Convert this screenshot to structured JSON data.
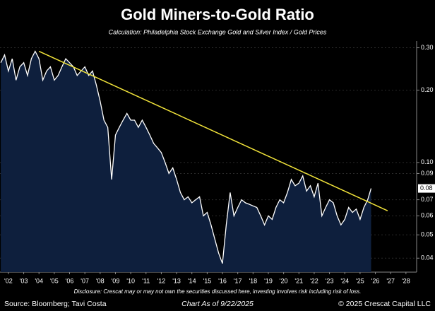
{
  "chart_data": {
    "type": "area",
    "title": "Gold Miners-to-Gold Ratio",
    "subtitle": "Calculation: Philadelphia Stock Exchange Gold and Silver Index / Gold Prices",
    "log_scale": true,
    "grid": true,
    "xlim": [
      2001.45,
      2028.7
    ],
    "ylim": [
      0.035,
      0.32
    ],
    "xticks": [
      {
        "value": 2002,
        "label": "'02"
      },
      {
        "value": 2003,
        "label": "'03"
      },
      {
        "value": 2004,
        "label": "'04"
      },
      {
        "value": 2005,
        "label": "'05"
      },
      {
        "value": 2006,
        "label": "'06"
      },
      {
        "value": 2007,
        "label": "'07"
      },
      {
        "value": 2008,
        "label": "'08"
      },
      {
        "value": 2009,
        "label": "'09"
      },
      {
        "value": 2010,
        "label": "'10"
      },
      {
        "value": 2011,
        "label": "'11"
      },
      {
        "value": 2012,
        "label": "'12"
      },
      {
        "value": 2013,
        "label": "'13"
      },
      {
        "value": 2014,
        "label": "'14"
      },
      {
        "value": 2015,
        "label": "'15"
      },
      {
        "value": 2016,
        "label": "'16"
      },
      {
        "value": 2017,
        "label": "'17"
      },
      {
        "value": 2018,
        "label": "'18"
      },
      {
        "value": 2019,
        "label": "'19"
      },
      {
        "value": 2020,
        "label": "'20"
      },
      {
        "value": 2021,
        "label": "'21"
      },
      {
        "value": 2022,
        "label": "'22"
      },
      {
        "value": 2023,
        "label": "'23"
      },
      {
        "value": 2024,
        "label": "'24"
      },
      {
        "value": 2025,
        "label": "'25"
      },
      {
        "value": 2026,
        "label": "'26"
      },
      {
        "value": 2027,
        "label": "'27"
      },
      {
        "value": 2028,
        "label": "'28"
      }
    ],
    "yticks": [
      {
        "value": 0.3,
        "label": "0.30"
      },
      {
        "value": 0.2,
        "label": "0.20"
      },
      {
        "value": 0.1,
        "label": "0.10"
      },
      0.09,
      0.07,
      0.06,
      0.05,
      0.04
    ],
    "current_value": {
      "value": 0.078,
      "label": "0.08"
    },
    "series": [
      {
        "name": "Gold Miners-to-Gold Ratio",
        "color": "#ffffff",
        "fill": "#0e1f3d",
        "x": [
          2001.5,
          2001.75,
          2002.0,
          2002.25,
          2002.5,
          2002.75,
          2003.0,
          2003.25,
          2003.5,
          2003.75,
          2004.0,
          2004.25,
          2004.5,
          2004.75,
          2005.0,
          2005.25,
          2005.5,
          2005.75,
          2006.0,
          2006.25,
          2006.5,
          2006.75,
          2007.0,
          2007.25,
          2007.5,
          2007.75,
          2008.0,
          2008.25,
          2008.5,
          2008.75,
          2009.0,
          2009.25,
          2009.5,
          2009.75,
          2010.0,
          2010.25,
          2010.5,
          2010.75,
          2011.0,
          2011.25,
          2011.5,
          2011.75,
          2012.0,
          2012.25,
          2012.5,
          2012.75,
          2013.0,
          2013.25,
          2013.5,
          2013.75,
          2014.0,
          2014.25,
          2014.5,
          2014.75,
          2015.0,
          2015.25,
          2015.5,
          2015.75,
          2016.0,
          2016.25,
          2016.5,
          2016.75,
          2017.0,
          2017.25,
          2017.5,
          2017.75,
          2018.0,
          2018.25,
          2018.5,
          2018.75,
          2019.0,
          2019.25,
          2019.5,
          2019.75,
          2020.0,
          2020.25,
          2020.5,
          2020.75,
          2021.0,
          2021.25,
          2021.5,
          2021.75,
          2022.0,
          2022.25,
          2022.5,
          2022.75,
          2023.0,
          2023.25,
          2023.5,
          2023.75,
          2024.0,
          2024.25,
          2024.5,
          2024.75,
          2025.0,
          2025.25,
          2025.5,
          2025.72
        ],
        "values": [
          0.26,
          0.28,
          0.24,
          0.27,
          0.22,
          0.25,
          0.26,
          0.23,
          0.27,
          0.29,
          0.27,
          0.22,
          0.24,
          0.25,
          0.22,
          0.23,
          0.25,
          0.27,
          0.26,
          0.25,
          0.23,
          0.24,
          0.25,
          0.23,
          0.24,
          0.21,
          0.18,
          0.15,
          0.14,
          0.085,
          0.13,
          0.14,
          0.15,
          0.16,
          0.15,
          0.15,
          0.14,
          0.15,
          0.14,
          0.13,
          0.12,
          0.115,
          0.11,
          0.1,
          0.09,
          0.095,
          0.085,
          0.075,
          0.07,
          0.072,
          0.068,
          0.07,
          0.072,
          0.06,
          0.062,
          0.055,
          0.048,
          0.042,
          0.038,
          0.055,
          0.075,
          0.06,
          0.065,
          0.07,
          0.068,
          0.067,
          0.066,
          0.065,
          0.06,
          0.055,
          0.06,
          0.058,
          0.065,
          0.07,
          0.068,
          0.075,
          0.085,
          0.08,
          0.082,
          0.088,
          0.076,
          0.08,
          0.072,
          0.082,
          0.06,
          0.065,
          0.07,
          0.068,
          0.06,
          0.055,
          0.058,
          0.065,
          0.062,
          0.064,
          0.058,
          0.065,
          0.07,
          0.078
        ]
      }
    ],
    "trendline": {
      "x": [
        2004.0,
        2026.8
      ],
      "values": [
        0.29,
        0.063
      ],
      "color": "#f2e43a"
    },
    "disclosure": "Disclosure: Crescat may or may not own the securities discussed here, investing involves risk including risk of loss.",
    "source": "Source: Bloomberg; Tavi Costa",
    "date_note": "Chart As of 9/22/2025",
    "copyright": "© 2025 Crescat Capital LLC"
  }
}
